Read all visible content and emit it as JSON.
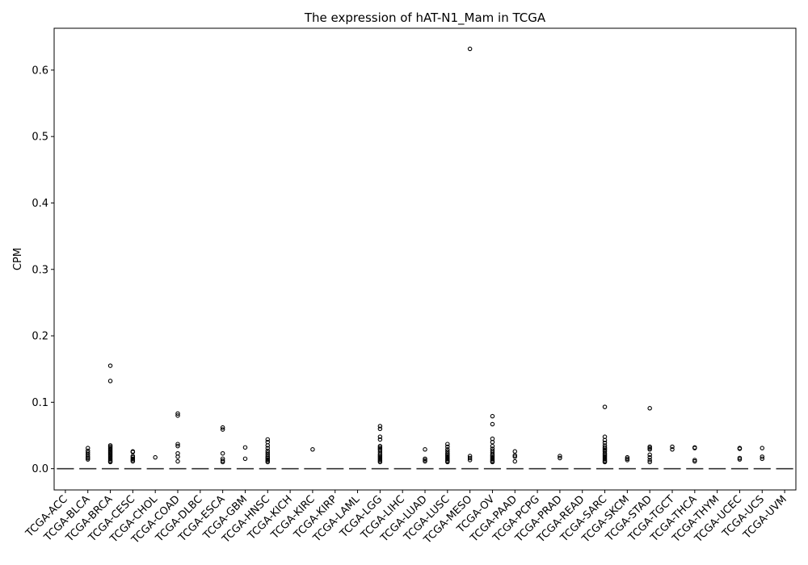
{
  "chart_data": {
    "type": "box",
    "title": "The expression of hAT-N1_Mam in TCGA",
    "xlabel": "",
    "ylabel": "CPM",
    "ylim": [
      -0.032,
      0.663
    ],
    "yticks": [
      0.0,
      0.1,
      0.2,
      0.3,
      0.4,
      0.5,
      0.6
    ],
    "ytick_labels": [
      "0.0",
      "0.1",
      "0.2",
      "0.3",
      "0.4",
      "0.5",
      "0.6"
    ],
    "categories": [
      "TCGA-ACC",
      "TCGA-BLCA",
      "TCGA-BRCA",
      "TCGA-CESC",
      "TCGA-CHOL",
      "TCGA-COAD",
      "TCGA-DLBC",
      "TCGA-ESCA",
      "TCGA-GBM",
      "TCGA-HNSC",
      "TCGA-KICH",
      "TCGA-KIRC",
      "TCGA-KIRP",
      "TCGA-LAML",
      "TCGA-LGG",
      "TCGA-LIHC",
      "TCGA-LUAD",
      "TCGA-LUSC",
      "TCGA-MESO",
      "TCGA-OV",
      "TCGA-PAAD",
      "TCGA-PCPG",
      "TCGA-PRAD",
      "TCGA-READ",
      "TCGA-SARC",
      "TCGA-SKCM",
      "TCGA-STAD",
      "TCGA-TGCT",
      "TCGA-THCA",
      "TCGA-THYM",
      "TCGA-UCEC",
      "TCGA-UCS",
      "TCGA-UVM"
    ],
    "medians": [
      0,
      0,
      0,
      0,
      0,
      0,
      0,
      0,
      0,
      0,
      0,
      0,
      0,
      0,
      0,
      0,
      0,
      0,
      0,
      0,
      0,
      0,
      0,
      0,
      0,
      0,
      0,
      0,
      0,
      0,
      0,
      0,
      0
    ],
    "outliers": [
      [],
      [
        0.031,
        0.027,
        0.024,
        0.021,
        0.018,
        0.016,
        0.014
      ],
      [
        0.155,
        0.132,
        0.035,
        0.033,
        0.031,
        0.029,
        0.027,
        0.025,
        0.023,
        0.021,
        0.019,
        0.017,
        0.015,
        0.013,
        0.011,
        0.01
      ],
      [
        0.026,
        0.025,
        0.019,
        0.017,
        0.015,
        0.013,
        0.011
      ],
      [
        0.017
      ],
      [
        0.083,
        0.08,
        0.037,
        0.034,
        0.023,
        0.018,
        0.011
      ],
      [],
      [
        0.062,
        0.059,
        0.023,
        0.015,
        0.012,
        0.01
      ],
      [
        0.032,
        0.015
      ],
      [
        0.044,
        0.04,
        0.035,
        0.031,
        0.027,
        0.024,
        0.021,
        0.018,
        0.016,
        0.014,
        0.012,
        0.01
      ],
      [],
      [
        0.029
      ],
      [],
      [],
      [
        0.064,
        0.06,
        0.048,
        0.044,
        0.034,
        0.032,
        0.03,
        0.028,
        0.025,
        0.022,
        0.02,
        0.018,
        0.016,
        0.014,
        0.012,
        0.01
      ],
      [],
      [
        0.029,
        0.015,
        0.013,
        0.011
      ],
      [
        0.037,
        0.033,
        0.029,
        0.026,
        0.023,
        0.021,
        0.019,
        0.017,
        0.015,
        0.013,
        0.011,
        0.01
      ],
      [
        0.632,
        0.019,
        0.016,
        0.013
      ],
      [
        0.079,
        0.067,
        0.045,
        0.04,
        0.034,
        0.03,
        0.027,
        0.024,
        0.021,
        0.019,
        0.017,
        0.015,
        0.013,
        0.011,
        0.01
      ],
      [
        0.026,
        0.02,
        0.018,
        0.011
      ],
      [],
      [
        0.019,
        0.016
      ],
      [],
      [
        0.093,
        0.048,
        0.043,
        0.039,
        0.035,
        0.032,
        0.03,
        0.028,
        0.026,
        0.023,
        0.021,
        0.019,
        0.017,
        0.015,
        0.013,
        0.011,
        0.01
      ],
      [
        0.017,
        0.015,
        0.013
      ],
      [
        0.091,
        0.033,
        0.031,
        0.029,
        0.021,
        0.017,
        0.013,
        0.01
      ],
      [
        0.033,
        0.029
      ],
      [
        0.032,
        0.031,
        0.013,
        0.011
      ],
      [],
      [
        0.031,
        0.03,
        0.016,
        0.014
      ],
      [
        0.031,
        0.018,
        0.015
      ],
      []
    ]
  }
}
